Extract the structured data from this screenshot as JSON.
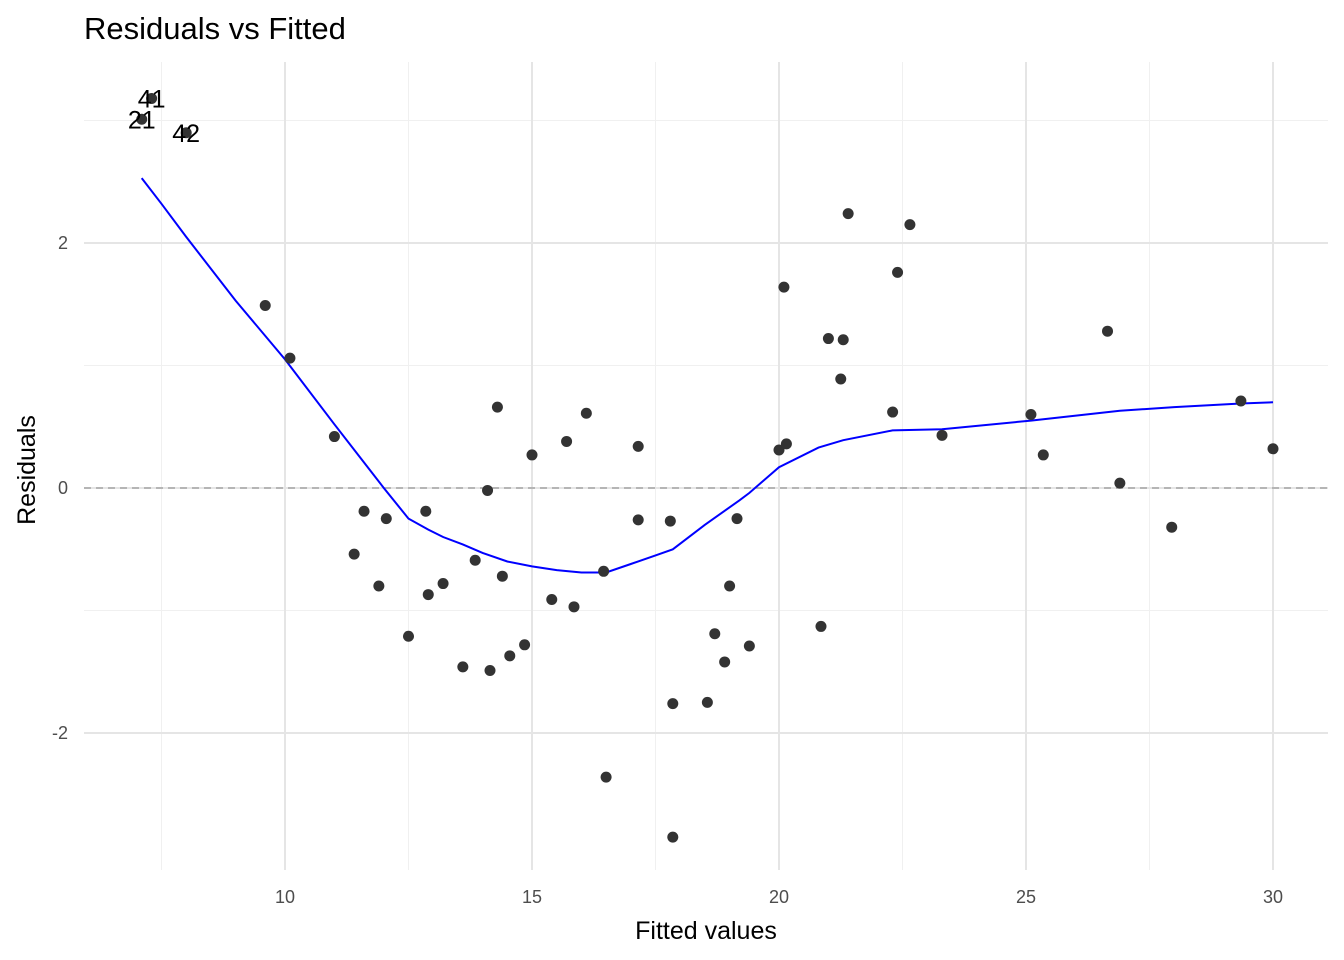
{
  "chart_data": {
    "type": "scatter",
    "title": "Residuals vs Fitted",
    "xlabel": "Fitted values",
    "ylabel": "Residuals",
    "xlim": [
      6.2,
      31.1
    ],
    "ylim": [
      -3.0,
      3.5
    ],
    "x_ticks": [
      10,
      15,
      20,
      25,
      30
    ],
    "y_ticks": [
      -2,
      0,
      2
    ],
    "x_tick_labels": [
      "10",
      "15",
      "20",
      "25",
      "30"
    ],
    "y_tick_labels": [
      "-2",
      "0",
      "2"
    ],
    "grid": true,
    "reference_line": {
      "y": 0,
      "style": "dashed",
      "color": "#999999"
    },
    "point_color": "#333333",
    "smooth_color": "#0000ff",
    "points": [
      {
        "x": 7.1,
        "y": 3.01
      },
      {
        "x": 7.3,
        "y": 3.18
      },
      {
        "x": 8.0,
        "y": 2.9
      },
      {
        "x": 9.6,
        "y": 1.49
      },
      {
        "x": 10.1,
        "y": 1.06
      },
      {
        "x": 11.0,
        "y": 0.42
      },
      {
        "x": 11.4,
        "y": -0.54
      },
      {
        "x": 11.6,
        "y": -0.19
      },
      {
        "x": 11.9,
        "y": -0.8
      },
      {
        "x": 12.05,
        "y": -0.25
      },
      {
        "x": 12.5,
        "y": -1.21
      },
      {
        "x": 12.85,
        "y": -0.19
      },
      {
        "x": 12.9,
        "y": -0.87
      },
      {
        "x": 13.2,
        "y": -0.78
      },
      {
        "x": 13.6,
        "y": -1.46
      },
      {
        "x": 13.85,
        "y": -0.59
      },
      {
        "x": 14.1,
        "y": -0.02
      },
      {
        "x": 14.15,
        "y": -1.49
      },
      {
        "x": 14.3,
        "y": 0.66
      },
      {
        "x": 14.4,
        "y": -0.72
      },
      {
        "x": 14.55,
        "y": -1.37
      },
      {
        "x": 14.85,
        "y": -1.28
      },
      {
        "x": 15.0,
        "y": 0.27
      },
      {
        "x": 15.4,
        "y": -0.91
      },
      {
        "x": 15.7,
        "y": 0.38
      },
      {
        "x": 15.85,
        "y": -0.97
      },
      {
        "x": 16.1,
        "y": 0.61
      },
      {
        "x": 16.45,
        "y": -0.68
      },
      {
        "x": 16.5,
        "y": -2.36
      },
      {
        "x": 17.15,
        "y": 0.34
      },
      {
        "x": 17.15,
        "y": -0.26
      },
      {
        "x": 17.8,
        "y": -0.27
      },
      {
        "x": 17.85,
        "y": -1.76
      },
      {
        "x": 17.85,
        "y": -2.85
      },
      {
        "x": 18.55,
        "y": -1.75
      },
      {
        "x": 18.7,
        "y": -1.19
      },
      {
        "x": 18.9,
        "y": -1.42
      },
      {
        "x": 19.0,
        "y": -0.8
      },
      {
        "x": 19.15,
        "y": -0.25
      },
      {
        "x": 19.4,
        "y": -1.29
      },
      {
        "x": 20.0,
        "y": 0.31
      },
      {
        "x": 20.1,
        "y": 1.64
      },
      {
        "x": 20.15,
        "y": 0.36
      },
      {
        "x": 20.85,
        "y": -1.13
      },
      {
        "x": 21.0,
        "y": 1.22
      },
      {
        "x": 21.25,
        "y": 0.89
      },
      {
        "x": 21.3,
        "y": 1.21
      },
      {
        "x": 21.4,
        "y": 2.24
      },
      {
        "x": 22.3,
        "y": 0.62
      },
      {
        "x": 22.4,
        "y": 1.76
      },
      {
        "x": 22.65,
        "y": 2.15
      },
      {
        "x": 23.3,
        "y": 0.43
      },
      {
        "x": 25.1,
        "y": 0.6
      },
      {
        "x": 25.35,
        "y": 0.27
      },
      {
        "x": 26.65,
        "y": 1.28
      },
      {
        "x": 26.9,
        "y": 0.04
      },
      {
        "x": 27.95,
        "y": -0.32
      },
      {
        "x": 29.35,
        "y": 0.71
      },
      {
        "x": 30.0,
        "y": 0.32
      }
    ],
    "smooth_line": [
      {
        "x": 7.1,
        "y": 2.53
      },
      {
        "x": 7.5,
        "y": 2.32
      },
      {
        "x": 8.0,
        "y": 2.05
      },
      {
        "x": 9.0,
        "y": 1.53
      },
      {
        "x": 10.0,
        "y": 1.05
      },
      {
        "x": 11.0,
        "y": 0.52
      },
      {
        "x": 11.5,
        "y": 0.26
      },
      {
        "x": 12.0,
        "y": 0.0
      },
      {
        "x": 12.5,
        "y": -0.25
      },
      {
        "x": 12.9,
        "y": -0.34
      },
      {
        "x": 13.2,
        "y": -0.4
      },
      {
        "x": 13.6,
        "y": -0.46
      },
      {
        "x": 14.0,
        "y": -0.53
      },
      {
        "x": 14.5,
        "y": -0.6
      },
      {
        "x": 15.0,
        "y": -0.64
      },
      {
        "x": 15.5,
        "y": -0.67
      },
      {
        "x": 16.0,
        "y": -0.69
      },
      {
        "x": 16.5,
        "y": -0.69
      },
      {
        "x": 17.0,
        "y": -0.62
      },
      {
        "x": 17.5,
        "y": -0.55
      },
      {
        "x": 17.85,
        "y": -0.5
      },
      {
        "x": 18.5,
        "y": -0.3
      },
      {
        "x": 19.2,
        "y": -0.1
      },
      {
        "x": 19.4,
        "y": -0.04
      },
      {
        "x": 20.0,
        "y": 0.17
      },
      {
        "x": 20.8,
        "y": 0.33
      },
      {
        "x": 21.3,
        "y": 0.39
      },
      {
        "x": 22.3,
        "y": 0.47
      },
      {
        "x": 23.3,
        "y": 0.48
      },
      {
        "x": 25.1,
        "y": 0.55
      },
      {
        "x": 26.9,
        "y": 0.63
      },
      {
        "x": 28.0,
        "y": 0.66
      },
      {
        "x": 29.35,
        "y": 0.69
      },
      {
        "x": 30.0,
        "y": 0.7
      }
    ],
    "labeled_points": [
      {
        "label": "41",
        "x": 7.3,
        "y": 3.18
      },
      {
        "label": "21",
        "x": 7.1,
        "y": 3.01
      },
      {
        "label": "42",
        "x": 8.0,
        "y": 2.9
      }
    ]
  }
}
